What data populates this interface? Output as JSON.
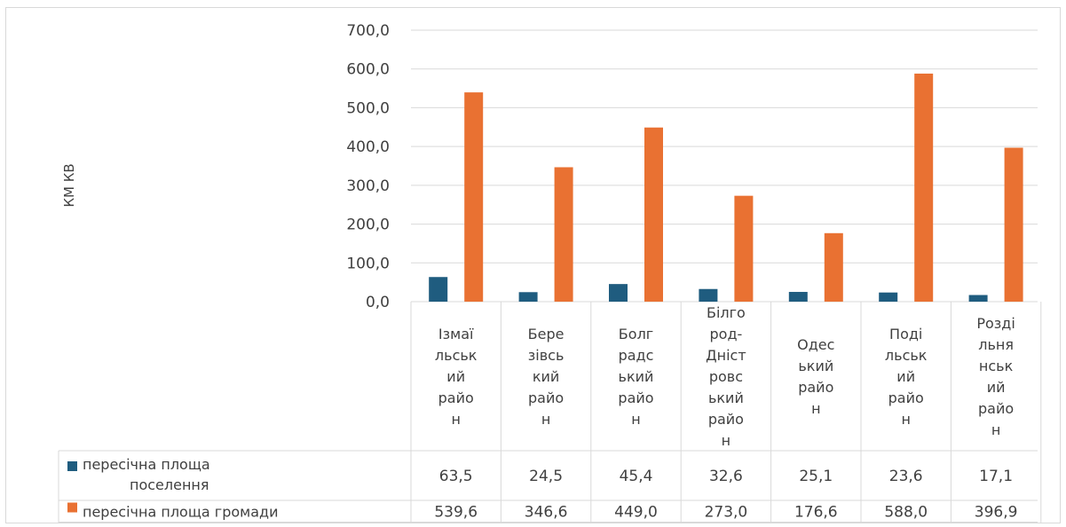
{
  "chart_data": {
    "type": "bar",
    "ylabel": "КМ КВ",
    "ylim": [
      0,
      700
    ],
    "yticks": [
      "0,0",
      "100,0",
      "200,0",
      "300,0",
      "400,0",
      "500,0",
      "600,0",
      "700,0"
    ],
    "grid": true,
    "legend": "data-table",
    "categories": [
      "Ізмаїльський район",
      "Березівський район",
      "Болградський район",
      "Білгород-Дністровський район",
      "Одеський район",
      "Подільський район",
      "Роздільнянський район"
    ],
    "category_lines": [
      [
        "Ізмаї",
        "льськ",
        "ий",
        "райо",
        "н"
      ],
      [
        "Бере",
        "зівсь",
        "кий",
        "райо",
        "н"
      ],
      [
        "Болг",
        "радс",
        "ький",
        "райо",
        "н"
      ],
      [
        "Білго",
        "род-",
        "Дніст",
        "ровс",
        "ький",
        "райо",
        "н"
      ],
      [
        "Одес",
        "ький",
        "райо",
        "н"
      ],
      [
        "Поді",
        "льськ",
        "ий",
        "райо",
        "н"
      ],
      [
        "Розді",
        "льня",
        "нськ",
        "ий",
        "райо",
        "н"
      ]
    ],
    "series": [
      {
        "name": "пересічна площа поселення",
        "name_lines": [
          "пересічна площа",
          "поселення"
        ],
        "color": "#1f5c7f",
        "values": [
          63.5,
          24.5,
          45.4,
          32.6,
          25.1,
          23.6,
          17.1
        ],
        "labels": [
          "63,5",
          "24,5",
          "45,4",
          "32,6",
          "25,1",
          "23,6",
          "17,1"
        ]
      },
      {
        "name": "пересічна площа громади",
        "name_lines": [
          "пересічна площа громади"
        ],
        "color": "#e97132",
        "values": [
          539.6,
          346.6,
          449.0,
          273.0,
          176.6,
          588.0,
          396.9
        ],
        "labels": [
          "539,6",
          "346,6",
          "449,0",
          "273,0",
          "176,6",
          "588,0",
          "396,9"
        ]
      }
    ]
  }
}
